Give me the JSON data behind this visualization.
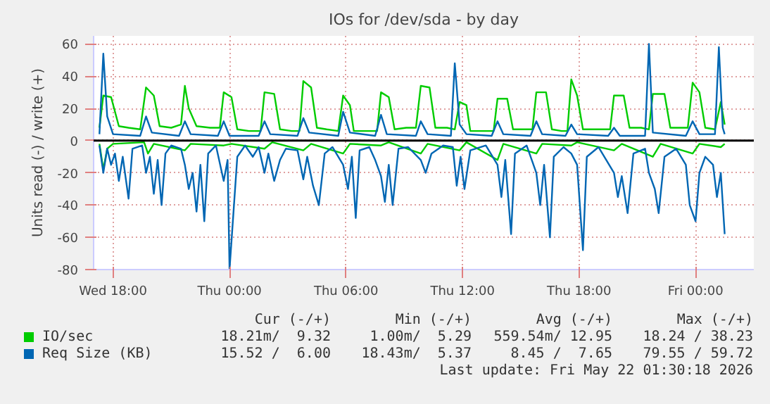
{
  "chart_data": {
    "type": "line",
    "title": "IOs for /dev/sda - by day",
    "ylabel": "Units read (-) / write (+)",
    "xlim": [
      "2026-05-20T17:00",
      "2026-05-22T03:00"
    ],
    "xticks": [
      {
        "value": "2026-05-20T18:00",
        "label": "Wed 18:00"
      },
      {
        "value": "2026-05-21T00:00",
        "label": "Thu 00:00"
      },
      {
        "value": "2026-05-21T06:00",
        "label": "Thu 06:00"
      },
      {
        "value": "2026-05-21T12:00",
        "label": "Thu 12:00"
      },
      {
        "value": "2026-05-21T18:00",
        "label": "Thu 18:00"
      },
      {
        "value": "2026-05-22T00:00",
        "label": "Fri 00:00"
      }
    ],
    "ylim": [
      -80,
      65
    ],
    "yticks": [
      -80,
      -60,
      -40,
      -20,
      0,
      20,
      40,
      60
    ],
    "grid": true,
    "legend": "bottom",
    "marker": "none",
    "line_style": "solid",
    "ref_lines": [
      {
        "axis": "y",
        "value": 0,
        "color": "#000000"
      }
    ],
    "series": [
      {
        "name": "IO/sec",
        "color": "#00cc00",
        "x": [
          "2026-05-20T17:18",
          "2026-05-20T17:30",
          "2026-05-20T17:54",
          "2026-05-20T18:18",
          "2026-05-20T18:48",
          "2026-05-20T19:24",
          "2026-05-20T19:42",
          "2026-05-20T20:06",
          "2026-05-20T20:24",
          "2026-05-20T21:00",
          "2026-05-20T21:30",
          "2026-05-20T21:42",
          "2026-05-20T21:54",
          "2026-05-20T22:18",
          "2026-05-20T23:00",
          "2026-05-20T23:30",
          "2026-05-20T23:42",
          "2026-05-21T00:06",
          "2026-05-21T00:24",
          "2026-05-21T01:00",
          "2026-05-21T01:36",
          "2026-05-21T01:48",
          "2026-05-21T02:18",
          "2026-05-21T02:36",
          "2026-05-21T03:12",
          "2026-05-21T03:36",
          "2026-05-21T03:48",
          "2026-05-21T04:12",
          "2026-05-21T04:30",
          "2026-05-21T05:00",
          "2026-05-21T05:36",
          "2026-05-21T05:51",
          "2026-05-21T06:12",
          "2026-05-21T06:24",
          "2026-05-21T07:00",
          "2026-05-21T07:36",
          "2026-05-21T07:48",
          "2026-05-21T08:12",
          "2026-05-21T08:30",
          "2026-05-21T09:06",
          "2026-05-21T09:36",
          "2026-05-21T09:51",
          "2026-05-21T10:18",
          "2026-05-21T10:36",
          "2026-05-21T11:12",
          "2026-05-21T11:36",
          "2026-05-21T11:51",
          "2026-05-21T12:12",
          "2026-05-21T12:24",
          "2026-05-21T13:00",
          "2026-05-21T13:36",
          "2026-05-21T13:48",
          "2026-05-21T14:18",
          "2026-05-21T14:36",
          "2026-05-21T15:12",
          "2026-05-21T15:36",
          "2026-05-21T15:48",
          "2026-05-21T16:18",
          "2026-05-21T16:36",
          "2026-05-21T17:06",
          "2026-05-21T17:24",
          "2026-05-21T17:36",
          "2026-05-21T17:54",
          "2026-05-21T18:12",
          "2026-05-21T19:00",
          "2026-05-21T19:36",
          "2026-05-21T19:48",
          "2026-05-21T20:18",
          "2026-05-21T20:36",
          "2026-05-21T21:12",
          "2026-05-21T21:36",
          "2026-05-21T21:48",
          "2026-05-21T22:24",
          "2026-05-21T22:42",
          "2026-05-21T23:12",
          "2026-05-21T23:36",
          "2026-05-21T23:51",
          "2026-05-22T00:12",
          "2026-05-22T00:30",
          "2026-05-22T01:00",
          "2026-05-22T01:18",
          "2026-05-22T01:30"
        ],
        "values": [
          8,
          28,
          27,
          9,
          8,
          7,
          33,
          28,
          9,
          8,
          10,
          34,
          20,
          9,
          8,
          8,
          30,
          27,
          7,
          6,
          6,
          30,
          29,
          7,
          6,
          6,
          37,
          33,
          8,
          7,
          6,
          28,
          22,
          6,
          6,
          6,
          30,
          27,
          7,
          8,
          8,
          34,
          33,
          8,
          8,
          7,
          24,
          22,
          6,
          6,
          6,
          26,
          26,
          7,
          7,
          7,
          30,
          30,
          7,
          6,
          6,
          38,
          28,
          7,
          7,
          7,
          28,
          28,
          8,
          8,
          7,
          29,
          29,
          8,
          8,
          8,
          36,
          30,
          8,
          7,
          24,
          10
        ]
      },
      {
        "color": "#00cc00",
        "x": [
          "2026-05-20T17:18",
          "2026-05-20T17:30",
          "2026-05-20T17:42",
          "2026-05-20T18:00",
          "2026-05-20T19:36",
          "2026-05-20T19:48",
          "2026-05-20T20:06",
          "2026-05-20T21:42",
          "2026-05-20T22:00",
          "2026-05-20T23:42",
          "2026-05-21T00:06",
          "2026-05-21T01:48",
          "2026-05-21T02:12",
          "2026-05-21T03:48",
          "2026-05-21T04:12",
          "2026-05-21T05:51",
          "2026-05-21T06:12",
          "2026-05-21T07:48",
          "2026-05-21T08:12",
          "2026-05-21T09:51",
          "2026-05-21T10:12",
          "2026-05-21T11:51",
          "2026-05-21T12:12",
          "2026-05-21T13:48",
          "2026-05-21T14:06",
          "2026-05-21T15:48",
          "2026-05-21T16:06",
          "2026-05-21T17:36",
          "2026-05-21T17:54",
          "2026-05-21T19:48",
          "2026-05-21T20:12",
          "2026-05-21T21:48",
          "2026-05-21T22:12",
          "2026-05-21T23:51",
          "2026-05-22T00:12",
          "2026-05-22T01:18",
          "2026-05-22T01:30"
        ],
        "values": [
          -2,
          -18,
          -5,
          -2,
          -1,
          -8,
          -2,
          -6,
          -2,
          -3,
          -2,
          -5,
          -1,
          -6,
          -2,
          -8,
          -2,
          -3,
          -1,
          -8,
          -2,
          -6,
          -1,
          -12,
          -2,
          -8,
          -2,
          -3,
          -1,
          -6,
          -2,
          -10,
          -2,
          -8,
          -2,
          -4,
          -2
        ]
      },
      {
        "name": "Req Size (KB)",
        "color": "#0066b3",
        "x": [
          "2026-05-20T17:18",
          "2026-05-20T17:30",
          "2026-05-20T17:42",
          "2026-05-20T18:00",
          "2026-05-20T19:24",
          "2026-05-20T19:42",
          "2026-05-20T20:00",
          "2026-05-20T21:24",
          "2026-05-20T21:42",
          "2026-05-20T22:00",
          "2026-05-20T23:24",
          "2026-05-20T23:42",
          "2026-05-21T00:00",
          "2026-05-21T01:30",
          "2026-05-21T01:48",
          "2026-05-21T02:06",
          "2026-05-21T03:30",
          "2026-05-21T03:48",
          "2026-05-21T04:06",
          "2026-05-21T05:36",
          "2026-05-21T05:51",
          "2026-05-21T06:12",
          "2026-05-21T07:30",
          "2026-05-21T07:48",
          "2026-05-21T08:06",
          "2026-05-21T09:36",
          "2026-05-21T09:51",
          "2026-05-21T10:12",
          "2026-05-21T11:24",
          "2026-05-21T11:36",
          "2026-05-21T11:51",
          "2026-05-21T12:12",
          "2026-05-21T13:30",
          "2026-05-21T13:48",
          "2026-05-21T14:06",
          "2026-05-21T15:30",
          "2026-05-21T15:48",
          "2026-05-21T16:06",
          "2026-05-21T17:18",
          "2026-05-21T17:36",
          "2026-05-21T17:54",
          "2026-05-21T19:30",
          "2026-05-21T19:48",
          "2026-05-21T20:06",
          "2026-05-21T21:24",
          "2026-05-21T21:36",
          "2026-05-21T21:48",
          "2026-05-21T23:30",
          "2026-05-21T23:51",
          "2026-05-22T00:12",
          "2026-05-22T01:00",
          "2026-05-22T01:12",
          "2026-05-22T01:24",
          "2026-05-22T01:30"
        ],
        "values": [
          4,
          54,
          15,
          4,
          3,
          15,
          5,
          3,
          12,
          4,
          3,
          12,
          3,
          3,
          12,
          4,
          3,
          14,
          5,
          3,
          18,
          5,
          3,
          16,
          4,
          3,
          12,
          4,
          3,
          48,
          10,
          4,
          3,
          12,
          4,
          3,
          12,
          4,
          3,
          10,
          4,
          3,
          8,
          3,
          3,
          60,
          5,
          3,
          12,
          4,
          4,
          58,
          8,
          4
        ]
      },
      {
        "color": "#0066b3",
        "x": [
          "2026-05-20T17:18",
          "2026-05-20T17:30",
          "2026-05-20T17:42",
          "2026-05-20T17:54",
          "2026-05-20T18:06",
          "2026-05-20T18:18",
          "2026-05-20T18:30",
          "2026-05-20T18:48",
          "2026-05-20T19:00",
          "2026-05-20T19:30",
          "2026-05-20T19:42",
          "2026-05-20T19:54",
          "2026-05-20T20:06",
          "2026-05-20T20:18",
          "2026-05-20T20:30",
          "2026-05-20T20:42",
          "2026-05-20T21:00",
          "2026-05-20T21:30",
          "2026-05-20T21:42",
          "2026-05-20T21:54",
          "2026-05-20T22:06",
          "2026-05-20T22:18",
          "2026-05-20T22:30",
          "2026-05-20T22:42",
          "2026-05-20T22:54",
          "2026-05-20T23:18",
          "2026-05-20T23:42",
          "2026-05-20T23:54",
          "2026-05-21T00:00",
          "2026-05-21T00:12",
          "2026-05-21T00:24",
          "2026-05-21T00:48",
          "2026-05-21T01:12",
          "2026-05-21T01:30",
          "2026-05-21T01:48",
          "2026-05-21T02:00",
          "2026-05-21T02:18",
          "2026-05-21T02:36",
          "2026-05-21T02:54",
          "2026-05-21T03:30",
          "2026-05-21T03:48",
          "2026-05-21T04:00",
          "2026-05-21T04:18",
          "2026-05-21T04:36",
          "2026-05-21T04:54",
          "2026-05-21T05:18",
          "2026-05-21T05:51",
          "2026-05-21T06:06",
          "2026-05-21T06:18",
          "2026-05-21T06:30",
          "2026-05-21T06:42",
          "2026-05-21T07:12",
          "2026-05-21T07:30",
          "2026-05-21T07:48",
          "2026-05-21T08:00",
          "2026-05-21T08:12",
          "2026-05-21T08:24",
          "2026-05-21T08:42",
          "2026-05-21T09:12",
          "2026-05-21T09:51",
          "2026-05-21T10:06",
          "2026-05-21T10:24",
          "2026-05-21T11:00",
          "2026-05-21T11:30",
          "2026-05-21T11:42",
          "2026-05-21T11:54",
          "2026-05-21T12:06",
          "2026-05-21T12:24",
          "2026-05-21T13:12",
          "2026-05-21T13:48",
          "2026-05-21T14:00",
          "2026-05-21T14:12",
          "2026-05-21T14:30",
          "2026-05-21T14:42",
          "2026-05-21T15:18",
          "2026-05-21T15:48",
          "2026-05-21T16:00",
          "2026-05-21T16:12",
          "2026-05-21T16:30",
          "2026-05-21T16:42",
          "2026-05-21T17:12",
          "2026-05-21T17:36",
          "2026-05-21T17:54",
          "2026-05-21T18:12",
          "2026-05-21T18:24",
          "2026-05-21T19:00",
          "2026-05-21T19:48",
          "2026-05-21T20:00",
          "2026-05-21T20:12",
          "2026-05-21T20:30",
          "2026-05-21T20:48",
          "2026-05-21T21:24",
          "2026-05-21T21:36",
          "2026-05-21T21:54",
          "2026-05-21T22:06",
          "2026-05-21T22:24",
          "2026-05-21T23:00",
          "2026-05-21T23:30",
          "2026-05-21T23:42",
          "2026-05-22T00:00",
          "2026-05-22T00:12",
          "2026-05-22T00:30",
          "2026-05-22T00:54",
          "2026-05-22T01:06",
          "2026-05-22T01:18",
          "2026-05-22T01:30"
        ],
        "values": [
          -3,
          -20,
          -5,
          -15,
          -8,
          -25,
          -10,
          -36,
          -5,
          -3,
          -20,
          -10,
          -33,
          -12,
          -40,
          -8,
          -3,
          -5,
          -15,
          -30,
          -20,
          -44,
          -15,
          -50,
          -8,
          -3,
          -25,
          -12,
          -80,
          -45,
          -10,
          -3,
          -10,
          -4,
          -20,
          -8,
          -25,
          -12,
          -5,
          -6,
          -24,
          -10,
          -28,
          -40,
          -8,
          -4,
          -15,
          -30,
          -10,
          -48,
          -6,
          -4,
          -12,
          -22,
          -38,
          -15,
          -40,
          -5,
          -4,
          -12,
          -20,
          -8,
          -3,
          -4,
          -28,
          -10,
          -30,
          -6,
          -3,
          -15,
          -35,
          -12,
          -58,
          -8,
          -3,
          -20,
          -40,
          -15,
          -60,
          -10,
          -4,
          -8,
          -15,
          -68,
          -10,
          -4,
          -20,
          -35,
          -22,
          -45,
          -8,
          -5,
          -20,
          -30,
          -45,
          -10,
          -5,
          -15,
          -40,
          -50,
          -20,
          -10,
          -15,
          -35,
          -20,
          -58
        ]
      }
    ],
    "annotations": [
      "Cur (-/+)",
      "Min (-/+)",
      "Avg (-/+)",
      "Max (-/+)",
      "18.21m/  9.32",
      "1.00m/  5.29",
      "559.54m/ 12.95",
      "18.24 / 38.23",
      "15.52 /  6.00",
      "18.43m/  5.37",
      "8.45 /  7.65",
      "79.55 / 59.72",
      "Last update: Fri May 22 01:30:18 2026"
    ]
  }
}
